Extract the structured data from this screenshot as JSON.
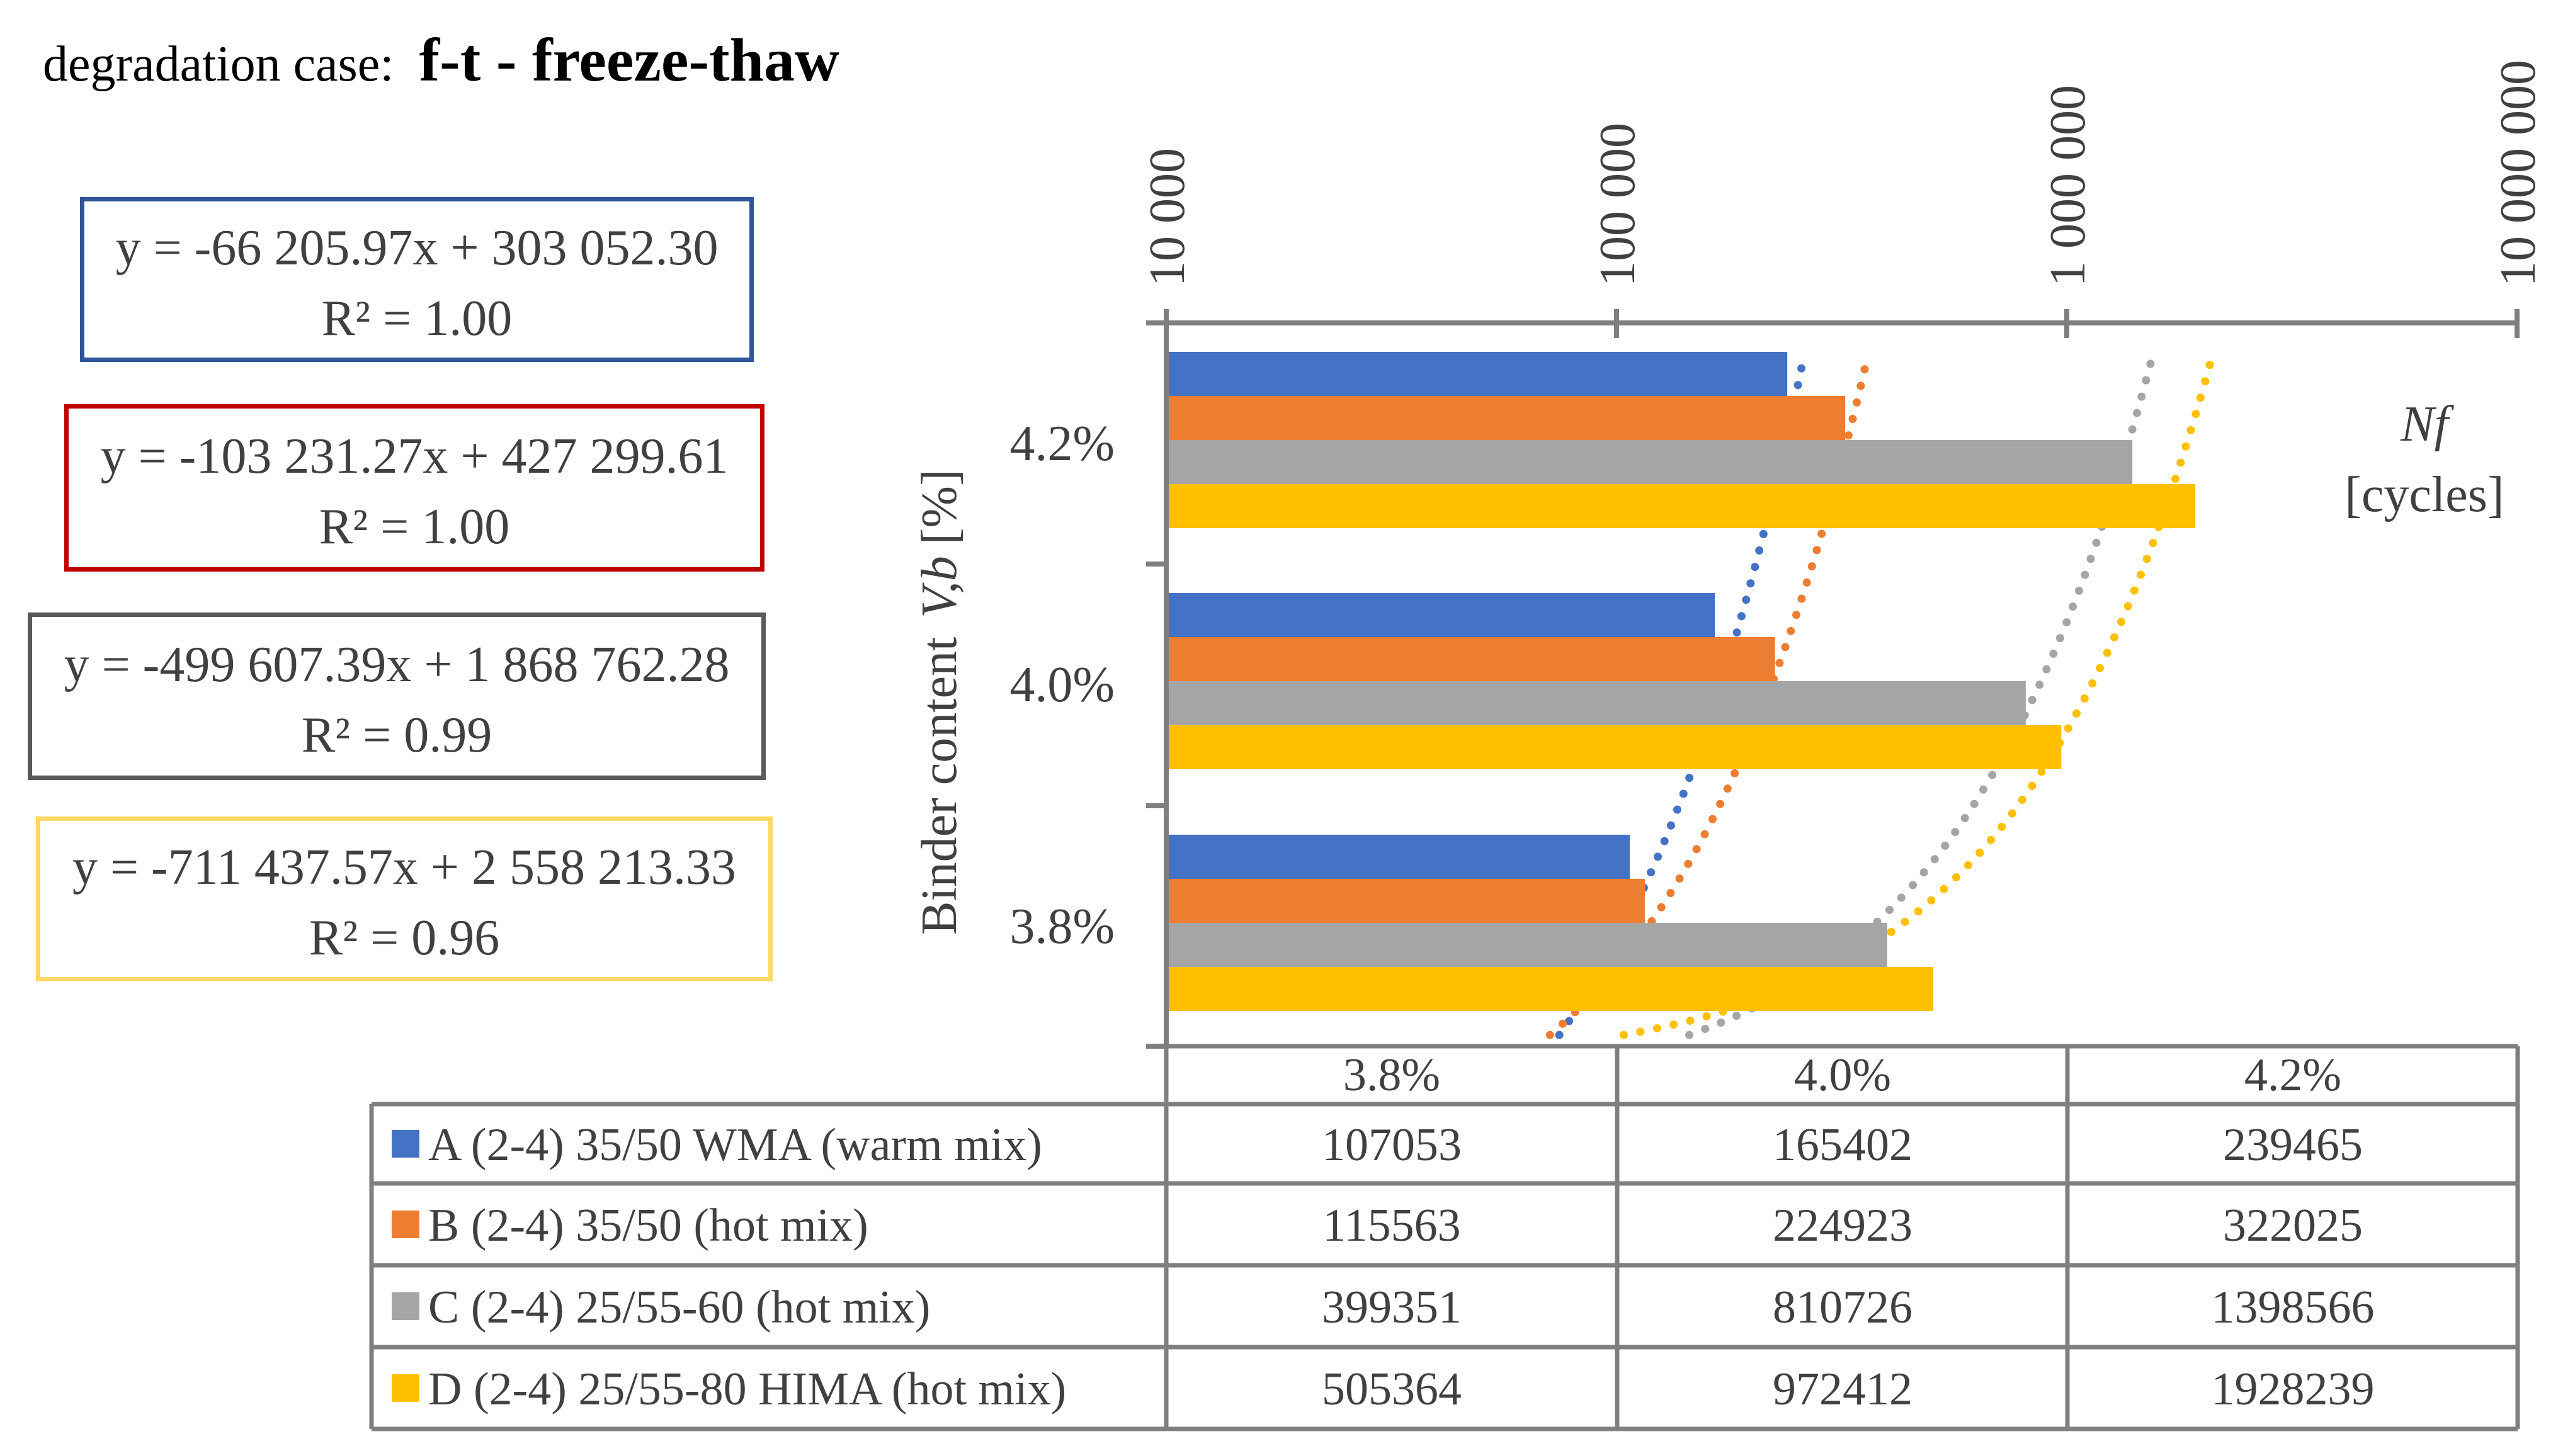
{
  "title": {
    "prefix": "degradation case:",
    "case": "f-t - freeze-thaw"
  },
  "equations": [
    {
      "equation": "y = -66 205.97x + 303 052.30",
      "r2": "R² = 1.00",
      "border_color": "#2F5597"
    },
    {
      "equation": "y = -103 231.27x + 427 299.61",
      "r2": "R² = 1.00",
      "border_color": "#C00000"
    },
    {
      "equation": "y = -499 607.39x + 1 868 762.28",
      "r2": "R² = 0.99",
      "border_color": "#595959"
    },
    {
      "equation": "y = -711 437.57x + 2 558 213.33",
      "r2": "R² = 0.96",
      "border_color": "#FFD966"
    }
  ],
  "chart_data": {
    "type": "bar",
    "orientation": "horizontal",
    "x_scale": "log",
    "xlim": [
      10000,
      10000000
    ],
    "x_ticks": [
      10000,
      100000,
      1000000,
      10000000
    ],
    "x_tick_labels": [
      "10 000",
      "100 000",
      "1 000 000",
      "10 000 000"
    ],
    "xlabel_italic": "Nf",
    "xlabel": "[cycles]",
    "ylabel": "Binder content",
    "ylabel_italic": "V,b",
    "ylabel_unit": "[%]",
    "categories": [
      "3.8%",
      "4.0%",
      "4.2%"
    ],
    "trendline": "dotted, linear",
    "legend": "data table below chart",
    "series": [
      {
        "name": "A (2-4) 35/50 WMA (warm mix)",
        "color": "#4472C4",
        "values": [
          107053,
          165402,
          239465
        ]
      },
      {
        "name": "B (2-4) 35/50 (hot mix)",
        "color": "#ED7D31",
        "values": [
          115563,
          224923,
          322025
        ]
      },
      {
        "name": "C (2-4) 25/55-60 (hot mix)",
        "color": "#A5A5A5",
        "values": [
          399351,
          810726,
          1398566
        ]
      },
      {
        "name": "D (2-4) 25/55-80 HIMA (hot mix)",
        "color": "#FFC000",
        "values": [
          505364,
          972412,
          1928239
        ]
      }
    ]
  }
}
